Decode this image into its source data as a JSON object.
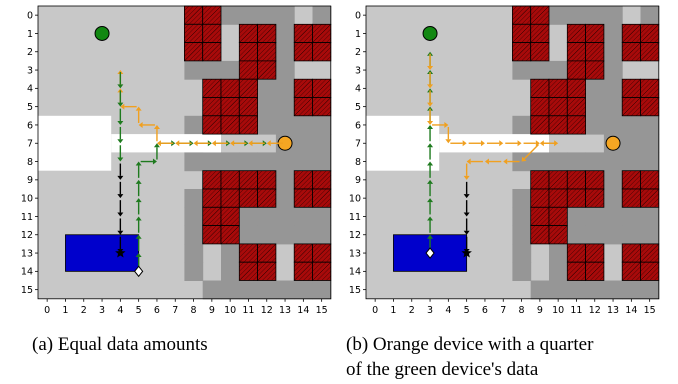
{
  "grid": {
    "ticks": [
      "0",
      "1",
      "2",
      "3",
      "4",
      "5",
      "6",
      "7",
      "8",
      "9",
      "10",
      "11",
      "12",
      "13",
      "14",
      "15"
    ],
    "colors": {
      "free": "#c8c8c8",
      "shadow": "#969696",
      "open_area": "#ffffff",
      "obstacle": "#a80a0a",
      "landing_zone": "#0000cc",
      "green_device": "#128812",
      "orange_device": "#f5a623",
      "green_path": "#1e7a1e",
      "orange_path": "#f0a020",
      "black_path": "#000000"
    },
    "obstacles": [
      [
        0,
        8
      ],
      [
        0,
        9
      ],
      [
        1,
        8
      ],
      [
        1,
        9
      ],
      [
        2,
        8
      ],
      [
        2,
        9
      ],
      [
        1,
        11
      ],
      [
        1,
        12
      ],
      [
        2,
        11
      ],
      [
        2,
        12
      ],
      [
        3,
        11
      ],
      [
        3,
        12
      ],
      [
        1,
        14
      ],
      [
        1,
        15
      ],
      [
        2,
        14
      ],
      [
        2,
        15
      ],
      [
        4,
        9
      ],
      [
        4,
        10
      ],
      [
        4,
        11
      ],
      [
        4,
        14
      ],
      [
        4,
        15
      ],
      [
        5,
        9
      ],
      [
        5,
        10
      ],
      [
        5,
        11
      ],
      [
        5,
        14
      ],
      [
        5,
        15
      ],
      [
        6,
        9
      ],
      [
        6,
        10
      ],
      [
        6,
        11
      ],
      [
        9,
        9
      ],
      [
        9,
        10
      ],
      [
        9,
        11
      ],
      [
        9,
        12
      ],
      [
        9,
        14
      ],
      [
        9,
        15
      ],
      [
        10,
        9
      ],
      [
        10,
        10
      ],
      [
        10,
        11
      ],
      [
        10,
        12
      ],
      [
        10,
        14
      ],
      [
        10,
        15
      ],
      [
        11,
        9
      ],
      [
        11,
        10
      ],
      [
        12,
        9
      ],
      [
        12,
        10
      ],
      [
        13,
        11
      ],
      [
        13,
        12
      ],
      [
        13,
        14
      ],
      [
        13,
        15
      ],
      [
        14,
        11
      ],
      [
        14,
        12
      ],
      [
        14,
        14
      ],
      [
        14,
        15
      ]
    ],
    "shadow": [
      [
        0,
        10
      ],
      [
        0,
        11
      ],
      [
        0,
        12
      ],
      [
        0,
        13
      ],
      [
        0,
        15
      ],
      [
        1,
        13
      ],
      [
        2,
        13
      ],
      [
        3,
        13
      ],
      [
        4,
        12
      ],
      [
        4,
        13
      ],
      [
        5,
        12
      ],
      [
        5,
        13
      ],
      [
        6,
        12
      ],
      [
        6,
        13
      ],
      [
        8,
        9
      ],
      [
        8,
        10
      ],
      [
        8,
        11
      ],
      [
        8,
        12
      ],
      [
        8,
        13
      ],
      [
        8,
        14
      ],
      [
        8,
        15
      ],
      [
        7,
        14
      ],
      [
        7,
        15
      ],
      [
        6,
        14
      ],
      [
        6,
        15
      ],
      [
        3,
        8
      ],
      [
        3,
        9
      ],
      [
        3,
        10
      ],
      [
        11,
        11
      ],
      [
        11,
        12
      ],
      [
        11,
        13
      ],
      [
        11,
        14
      ],
      [
        11,
        15
      ],
      [
        12,
        11
      ],
      [
        12,
        12
      ],
      [
        12,
        13
      ],
      [
        12,
        14
      ],
      [
        12,
        15
      ],
      [
        13,
        10
      ],
      [
        14,
        10
      ],
      [
        15,
        11
      ],
      [
        15,
        12
      ],
      [
        15,
        13
      ],
      [
        15,
        14
      ],
      [
        15,
        15
      ],
      [
        10,
        13
      ],
      [
        9,
        13
      ],
      [
        7,
        13
      ],
      [
        6,
        8
      ],
      [
        7,
        8
      ],
      [
        8,
        8
      ],
      [
        10,
        8
      ],
      [
        11,
        8
      ],
      [
        12,
        8
      ],
      [
        13,
        8
      ],
      [
        14,
        8
      ],
      [
        15,
        10
      ],
      [
        15,
        9
      ]
    ],
    "open_area": {
      "rows": [
        6,
        8
      ],
      "cols": [
        0,
        3
      ],
      "corridor_row": 7,
      "corridor_cols": [
        4,
        9
      ]
    },
    "landing_zone": {
      "rows": [
        12.5,
        14.5
      ],
      "cols": [
        1.5,
        5.5
      ]
    },
    "green_device": [
      1,
      3
    ],
    "orange_device": [
      7,
      13
    ]
  },
  "panels": [
    {
      "id": "a",
      "caption": [
        "(a) Equal data amounts"
      ],
      "paths": [
        {
          "color": "green_path",
          "pts": [
            [
              14,
              5
            ],
            [
              13,
              5
            ],
            [
              12,
              5
            ],
            [
              11,
              5
            ],
            [
              10,
              5
            ],
            [
              9,
              5
            ],
            [
              8,
              5
            ],
            [
              8,
              6
            ],
            [
              7,
              6
            ],
            [
              7,
              7
            ],
            [
              7,
              8
            ],
            [
              7,
              9
            ],
            [
              7,
              10
            ],
            [
              7,
              11
            ],
            [
              7,
              12
            ]
          ]
        },
        {
          "color": "orange_path",
          "pts": [
            [
              7,
              13
            ],
            [
              7,
              12
            ],
            [
              7,
              11
            ],
            [
              7,
              10
            ],
            [
              7,
              9
            ],
            [
              7,
              8
            ],
            [
              7,
              7
            ],
            [
              7,
              6
            ],
            [
              6,
              6
            ],
            [
              6,
              5
            ],
            [
              5,
              5
            ],
            [
              5,
              4
            ],
            [
              4,
              4
            ],
            [
              3,
              4
            ]
          ]
        },
        {
          "color": "green_path",
          "pts": [
            [
              3,
              4
            ],
            [
              4,
              4
            ],
            [
              5,
              4
            ],
            [
              6,
              4
            ],
            [
              7,
              4
            ],
            [
              8,
              4
            ]
          ]
        },
        {
          "color": "black_path",
          "pts": [
            [
              8,
              4
            ],
            [
              9,
              4
            ],
            [
              10,
              4
            ],
            [
              11,
              4
            ],
            [
              12,
              4
            ],
            [
              13,
              4
            ]
          ]
        }
      ],
      "end_star": [
        13,
        4
      ],
      "start_diamond": [
        14,
        5
      ]
    },
    {
      "id": "b",
      "caption": [
        "(b) Orange device with a quarter",
        "of the green device's data"
      ],
      "paths": [
        {
          "color": "green_path",
          "pts": [
            [
              13,
              3
            ],
            [
              12,
              3
            ],
            [
              11,
              3
            ],
            [
              10,
              3
            ],
            [
              9,
              3
            ],
            [
              8,
              3
            ],
            [
              7,
              3
            ],
            [
              6,
              3
            ],
            [
              5,
              3
            ],
            [
              4,
              3
            ],
            [
              3,
              3
            ],
            [
              2,
              3
            ]
          ]
        },
        {
          "color": "orange_path",
          "pts": [
            [
              2,
              3
            ],
            [
              3,
              3
            ],
            [
              4,
              3
            ],
            [
              5,
              3
            ],
            [
              6,
              3
            ],
            [
              6,
              4
            ],
            [
              7,
              4
            ],
            [
              7,
              5
            ],
            [
              7,
              6
            ],
            [
              7,
              7
            ],
            [
              7,
              8
            ],
            [
              7,
              9
            ],
            [
              7,
              10
            ]
          ]
        },
        {
          "color": "orange_path",
          "pts": [
            [
              7,
              10
            ],
            [
              7,
              9
            ],
            [
              8,
              8
            ],
            [
              8,
              7
            ],
            [
              8,
              6
            ],
            [
              8,
              5
            ],
            [
              9,
              5
            ]
          ]
        },
        {
          "color": "black_path",
          "pts": [
            [
              9,
              5
            ],
            [
              10,
              5
            ],
            [
              11,
              5
            ],
            [
              12,
              5
            ],
            [
              13,
              5
            ]
          ]
        }
      ],
      "end_star": [
        13,
        5
      ],
      "start_diamond": [
        13,
        3
      ]
    }
  ]
}
